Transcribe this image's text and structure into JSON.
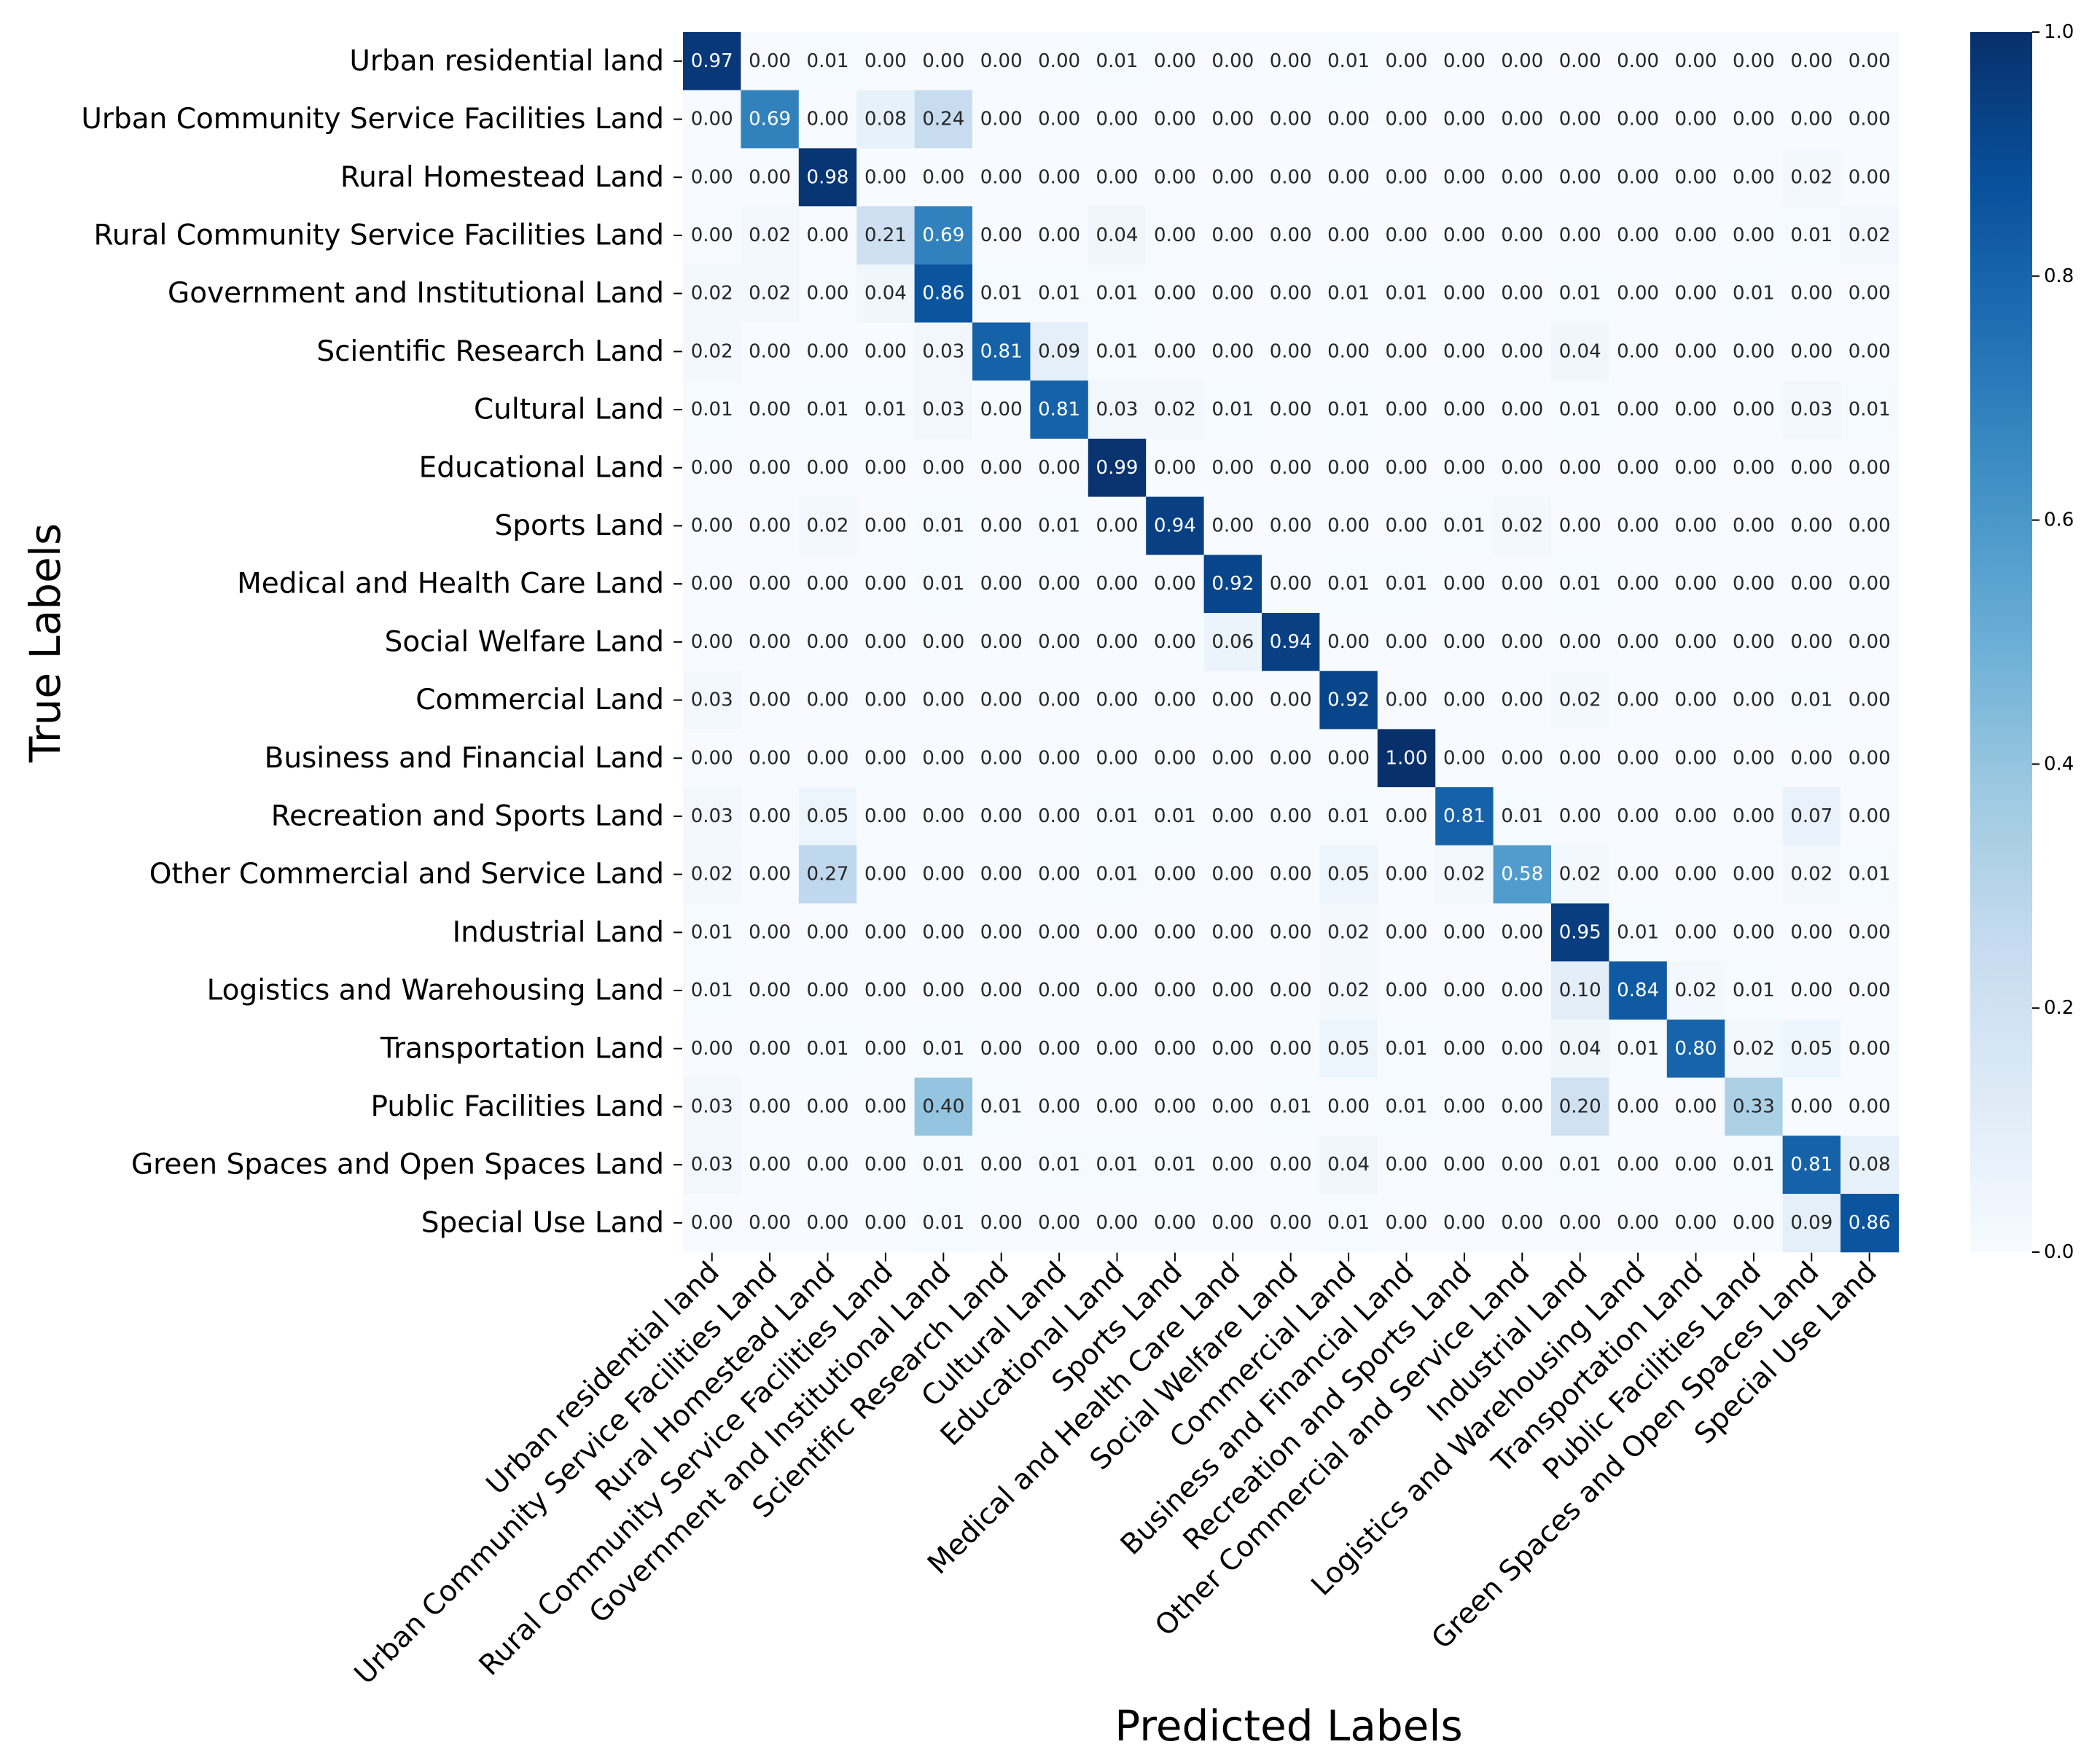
{
  "chart_data": {
    "type": "heatmap",
    "title": "",
    "xlabel": "Predicted Labels",
    "ylabel": "True Labels",
    "categories": [
      "Urban residential land",
      "Urban Community Service Facilities Land",
      "Rural Homestead Land",
      "Rural Community Service Facilities Land",
      "Government and Institutional Land",
      "Scientific Research Land",
      "Cultural Land",
      "Educational Land",
      "Sports Land",
      "Medical and Health Care Land",
      "Social Welfare Land",
      "Commercial Land",
      "Business and Financial Land",
      "Recreation and Sports Land",
      "Other Commercial and Service Land",
      "Industrial Land",
      "Logistics and Warehousing Land",
      "Transportation Land",
      "Public Facilities Land",
      "Green Spaces and Open Spaces Land",
      "Special Use Land"
    ],
    "values": [
      [
        "0.97",
        "0.00",
        "0.01",
        "0.00",
        "0.00",
        "0.00",
        "0.00",
        "0.01",
        "0.00",
        "0.00",
        "0.00",
        "0.01",
        "0.00",
        "0.00",
        "0.00",
        "0.00",
        "0.00",
        "0.00",
        "0.00",
        "0.00",
        "0.00"
      ],
      [
        "0.00",
        "0.69",
        "0.00",
        "0.08",
        "0.24",
        "0.00",
        "0.00",
        "0.00",
        "0.00",
        "0.00",
        "0.00",
        "0.00",
        "0.00",
        "0.00",
        "0.00",
        "0.00",
        "0.00",
        "0.00",
        "0.00",
        "0.00",
        "0.00"
      ],
      [
        "0.00",
        "0.00",
        "0.98",
        "0.00",
        "0.00",
        "0.00",
        "0.00",
        "0.00",
        "0.00",
        "0.00",
        "0.00",
        "0.00",
        "0.00",
        "0.00",
        "0.00",
        "0.00",
        "0.00",
        "0.00",
        "0.00",
        "0.02",
        "0.00"
      ],
      [
        "0.00",
        "0.02",
        "0.00",
        "0.21",
        "0.69",
        "0.00",
        "0.00",
        "0.04",
        "0.00",
        "0.00",
        "0.00",
        "0.00",
        "0.00",
        "0.00",
        "0.00",
        "0.00",
        "0.00",
        "0.00",
        "0.00",
        "0.01",
        "0.02"
      ],
      [
        "0.02",
        "0.02",
        "0.00",
        "0.04",
        "0.86",
        "0.01",
        "0.01",
        "0.01",
        "0.00",
        "0.00",
        "0.00",
        "0.01",
        "0.01",
        "0.00",
        "0.00",
        "0.01",
        "0.00",
        "0.00",
        "0.01",
        "0.00",
        "0.00"
      ],
      [
        "0.02",
        "0.00",
        "0.00",
        "0.00",
        "0.03",
        "0.81",
        "0.09",
        "0.01",
        "0.00",
        "0.00",
        "0.00",
        "0.00",
        "0.00",
        "0.00",
        "0.00",
        "0.04",
        "0.00",
        "0.00",
        "0.00",
        "0.00",
        "0.00"
      ],
      [
        "0.01",
        "0.00",
        "0.01",
        "0.01",
        "0.03",
        "0.00",
        "0.81",
        "0.03",
        "0.02",
        "0.01",
        "0.00",
        "0.01",
        "0.00",
        "0.00",
        "0.00",
        "0.01",
        "0.00",
        "0.00",
        "0.00",
        "0.03",
        "0.01"
      ],
      [
        "0.00",
        "0.00",
        "0.00",
        "0.00",
        "0.00",
        "0.00",
        "0.00",
        "0.99",
        "0.00",
        "0.00",
        "0.00",
        "0.00",
        "0.00",
        "0.00",
        "0.00",
        "0.00",
        "0.00",
        "0.00",
        "0.00",
        "0.00",
        "0.00"
      ],
      [
        "0.00",
        "0.00",
        "0.02",
        "0.00",
        "0.01",
        "0.00",
        "0.01",
        "0.00",
        "0.94",
        "0.00",
        "0.00",
        "0.00",
        "0.00",
        "0.01",
        "0.02",
        "0.00",
        "0.00",
        "0.00",
        "0.00",
        "0.00",
        "0.00"
      ],
      [
        "0.00",
        "0.00",
        "0.00",
        "0.00",
        "0.01",
        "0.00",
        "0.00",
        "0.00",
        "0.00",
        "0.92",
        "0.00",
        "0.01",
        "0.01",
        "0.00",
        "0.00",
        "0.01",
        "0.00",
        "0.00",
        "0.00",
        "0.00",
        "0.00"
      ],
      [
        "0.00",
        "0.00",
        "0.00",
        "0.00",
        "0.00",
        "0.00",
        "0.00",
        "0.00",
        "0.00",
        "0.06",
        "0.94",
        "0.00",
        "0.00",
        "0.00",
        "0.00",
        "0.00",
        "0.00",
        "0.00",
        "0.00",
        "0.00",
        "0.00"
      ],
      [
        "0.03",
        "0.00",
        "0.00",
        "0.00",
        "0.00",
        "0.00",
        "0.00",
        "0.00",
        "0.00",
        "0.00",
        "0.00",
        "0.92",
        "0.00",
        "0.00",
        "0.00",
        "0.02",
        "0.00",
        "0.00",
        "0.00",
        "0.01",
        "0.00"
      ],
      [
        "0.00",
        "0.00",
        "0.00",
        "0.00",
        "0.00",
        "0.00",
        "0.00",
        "0.00",
        "0.00",
        "0.00",
        "0.00",
        "0.00",
        "1.00",
        "0.00",
        "0.00",
        "0.00",
        "0.00",
        "0.00",
        "0.00",
        "0.00",
        "0.00"
      ],
      [
        "0.03",
        "0.00",
        "0.05",
        "0.00",
        "0.00",
        "0.00",
        "0.00",
        "0.01",
        "0.01",
        "0.00",
        "0.00",
        "0.01",
        "0.00",
        "0.81",
        "0.01",
        "0.00",
        "0.00",
        "0.00",
        "0.00",
        "0.07",
        "0.00"
      ],
      [
        "0.02",
        "0.00",
        "0.27",
        "0.00",
        "0.00",
        "0.00",
        "0.00",
        "0.01",
        "0.00",
        "0.00",
        "0.00",
        "0.05",
        "0.00",
        "0.02",
        "0.58",
        "0.02",
        "0.00",
        "0.00",
        "0.00",
        "0.02",
        "0.01"
      ],
      [
        "0.01",
        "0.00",
        "0.00",
        "0.00",
        "0.00",
        "0.00",
        "0.00",
        "0.00",
        "0.00",
        "0.00",
        "0.00",
        "0.02",
        "0.00",
        "0.00",
        "0.00",
        "0.95",
        "0.01",
        "0.00",
        "0.00",
        "0.00",
        "0.00"
      ],
      [
        "0.01",
        "0.00",
        "0.00",
        "0.00",
        "0.00",
        "0.00",
        "0.00",
        "0.00",
        "0.00",
        "0.00",
        "0.00",
        "0.02",
        "0.00",
        "0.00",
        "0.00",
        "0.10",
        "0.84",
        "0.02",
        "0.01",
        "0.00",
        "0.00"
      ],
      [
        "0.00",
        "0.00",
        "0.01",
        "0.00",
        "0.01",
        "0.00",
        "0.00",
        "0.00",
        "0.00",
        "0.00",
        "0.00",
        "0.05",
        "0.01",
        "0.00",
        "0.00",
        "0.04",
        "0.01",
        "0.80",
        "0.02",
        "0.05",
        "0.00"
      ],
      [
        "0.03",
        "0.00",
        "0.00",
        "0.00",
        "0.40",
        "0.01",
        "0.00",
        "0.00",
        "0.00",
        "0.00",
        "0.01",
        "0.00",
        "0.01",
        "0.00",
        "0.00",
        "0.20",
        "0.00",
        "0.00",
        "0.33",
        "0.00",
        "0.00"
      ],
      [
        "0.03",
        "0.00",
        "0.00",
        "0.00",
        "0.01",
        "0.00",
        "0.01",
        "0.01",
        "0.01",
        "0.00",
        "0.00",
        "0.04",
        "0.00",
        "0.00",
        "0.00",
        "0.01",
        "0.00",
        "0.00",
        "0.01",
        "0.81",
        "0.08"
      ],
      [
        "0.00",
        "0.00",
        "0.00",
        "0.00",
        "0.01",
        "0.00",
        "0.00",
        "0.00",
        "0.00",
        "0.00",
        "0.00",
        "0.01",
        "0.00",
        "0.00",
        "0.00",
        "0.00",
        "0.00",
        "0.00",
        "0.00",
        "0.09",
        "0.86"
      ]
    ],
    "colorbar": {
      "range": [
        0.0,
        1.0
      ],
      "ticks": [
        "0.0",
        "0.2",
        "0.4",
        "0.6",
        "0.8",
        "1.0"
      ]
    },
    "colormap": "Blues",
    "grid": false
  }
}
